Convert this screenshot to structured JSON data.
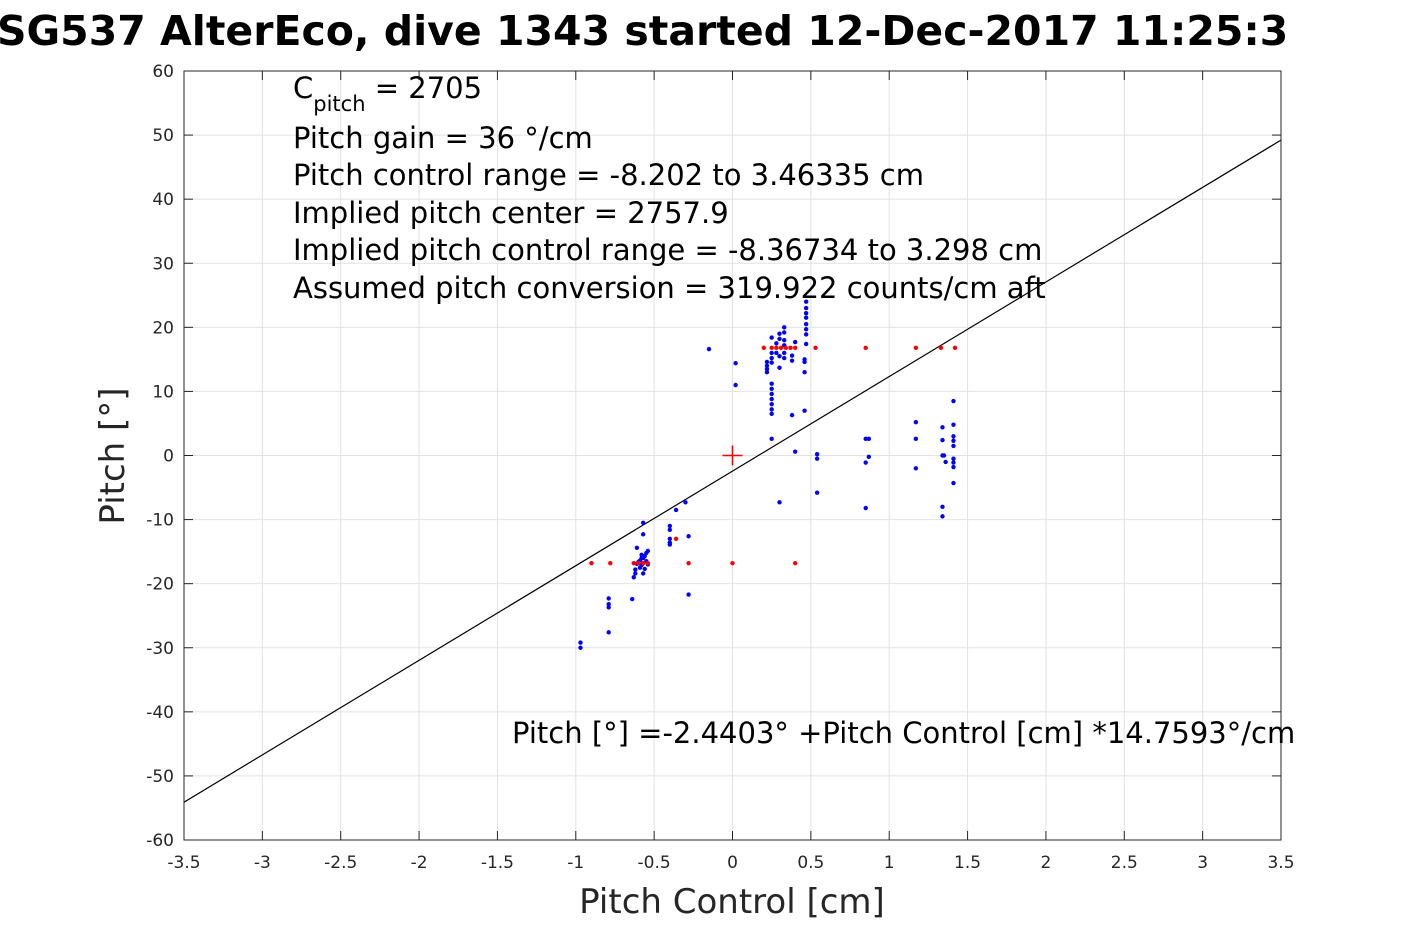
{
  "chart_data": {
    "type": "scatter",
    "title": "SG537 AlterEco, dive 1343 started 12-Dec-2017 11:25:3",
    "xlabel": "Pitch Control [cm]",
    "ylabel": "Pitch [°]",
    "xlim": [
      -3.5,
      3.5
    ],
    "ylim": [
      -60,
      60
    ],
    "xticks": [
      -3.5,
      -3,
      -2.5,
      -2,
      -1.5,
      -1,
      -0.5,
      0,
      0.5,
      1,
      1.5,
      2,
      2.5,
      3,
      3.5
    ],
    "yticks": [
      -60,
      -50,
      -40,
      -30,
      -20,
      -10,
      0,
      10,
      20,
      30,
      40,
      50,
      60
    ],
    "xtick_labels": [
      "-3.5",
      "-3",
      "-2.5",
      "-2",
      "-1.5",
      "-1",
      "-0.5",
      "0",
      "0.5",
      "1",
      "1.5",
      "2",
      "2.5",
      "3",
      "3.5"
    ],
    "ytick_labels": [
      "-60",
      "-50",
      "-40",
      "-30",
      "-20",
      "-10",
      "0",
      "10",
      "20",
      "30",
      "40",
      "50",
      "60"
    ],
    "grid": true,
    "colors": {
      "observed": "#0000ff",
      "flagged": "#ff0000",
      "fit": "#000000",
      "center": "#ff0000"
    },
    "fit_line": {
      "intercept": -2.4403,
      "slope": 14.7593
    },
    "center_marker": {
      "x": 0,
      "y": 0
    },
    "annotations": {
      "c_pitch_prefix": "C",
      "c_pitch_sub": "pitch",
      "c_pitch_value": " = 2705",
      "lines": [
        "Pitch gain = 36 °/cm",
        "Pitch control range = -8.202 to 3.46335 cm",
        "Implied pitch center = 2757.9",
        "Implied pitch control range = -8.36734 to 3.298 cm",
        "Assumed pitch conversion = 319.922 counts/cm aft"
      ],
      "fit_equation": "Pitch [°] =-2.4403° +Pitch Control [cm] *14.7593°/cm"
    },
    "series": [
      {
        "role": "observed",
        "color": "#0000ff",
        "points": [
          [
            -0.97,
            -29.2
          ],
          [
            -0.97,
            -30.0
          ],
          [
            -0.79,
            -22.3
          ],
          [
            -0.79,
            -23.2
          ],
          [
            -0.79,
            -23.7
          ],
          [
            -0.79,
            -27.6
          ],
          [
            -0.64,
            -22.4
          ],
          [
            -0.63,
            -19.0
          ],
          [
            -0.62,
            -18.4
          ],
          [
            -0.62,
            -17.8
          ],
          [
            -0.61,
            -16.9
          ],
          [
            -0.61,
            -14.4
          ],
          [
            -0.6,
            -16.6
          ],
          [
            -0.59,
            -17.5
          ],
          [
            -0.59,
            -16.4
          ],
          [
            -0.58,
            -16.0
          ],
          [
            -0.58,
            -15.5
          ],
          [
            -0.58,
            -17.1
          ],
          [
            -0.57,
            -18.4
          ],
          [
            -0.57,
            -16.0
          ],
          [
            -0.57,
            -12.3
          ],
          [
            -0.57,
            -10.5
          ],
          [
            -0.56,
            -15.7
          ],
          [
            -0.56,
            -17.7
          ],
          [
            -0.55,
            -15.2
          ],
          [
            -0.55,
            -16.5
          ],
          [
            -0.54,
            -14.9
          ],
          [
            -0.54,
            -17.0
          ],
          [
            -0.4,
            -11.0
          ],
          [
            -0.4,
            -11.6
          ],
          [
            -0.4,
            -13.0
          ],
          [
            -0.4,
            -13.6
          ],
          [
            -0.4,
            -13.9
          ],
          [
            -0.36,
            -8.5
          ],
          [
            -0.3,
            -7.3
          ],
          [
            -0.28,
            -12.6
          ],
          [
            -0.28,
            -21.7
          ],
          [
            -0.15,
            16.6
          ],
          [
            0.02,
            14.4
          ],
          [
            0.02,
            11.0
          ],
          [
            0.22,
            14.6
          ],
          [
            0.22,
            14.0
          ],
          [
            0.22,
            13.5
          ],
          [
            0.22,
            13.0
          ],
          [
            0.25,
            18.4
          ],
          [
            0.25,
            16.0
          ],
          [
            0.25,
            15.2
          ],
          [
            0.25,
            14.5
          ],
          [
            0.25,
            11.2
          ],
          [
            0.25,
            10.4
          ],
          [
            0.25,
            9.6
          ],
          [
            0.25,
            8.8
          ],
          [
            0.25,
            8.0
          ],
          [
            0.25,
            7.2
          ],
          [
            0.25,
            6.5
          ],
          [
            0.25,
            2.6
          ],
          [
            0.28,
            17.5
          ],
          [
            0.28,
            16.0
          ],
          [
            0.3,
            19.0
          ],
          [
            0.3,
            18.2
          ],
          [
            0.3,
            15.5
          ],
          [
            0.3,
            13.7
          ],
          [
            0.3,
            -7.3
          ],
          [
            0.33,
            20.0
          ],
          [
            0.33,
            19.2
          ],
          [
            0.33,
            18.0
          ],
          [
            0.33,
            17.2
          ],
          [
            0.33,
            16.0
          ],
          [
            0.33,
            15.2
          ],
          [
            0.38,
            15.6
          ],
          [
            0.38,
            14.8
          ],
          [
            0.38,
            6.3
          ],
          [
            0.4,
            17.7
          ],
          [
            0.4,
            0.6
          ],
          [
            0.46,
            15.0
          ],
          [
            0.46,
            14.6
          ],
          [
            0.46,
            13.0
          ],
          [
            0.46,
            7.0
          ],
          [
            0.47,
            24.0
          ],
          [
            0.47,
            23.0
          ],
          [
            0.47,
            22.2
          ],
          [
            0.47,
            21.5
          ],
          [
            0.47,
            20.5
          ],
          [
            0.47,
            19.7
          ],
          [
            0.47,
            18.9
          ],
          [
            0.47,
            17.4
          ],
          [
            0.54,
            0.2
          ],
          [
            0.54,
            -0.5
          ],
          [
            0.54,
            -5.8
          ],
          [
            0.85,
            2.6
          ],
          [
            0.85,
            -1.1
          ],
          [
            0.85,
            -8.2
          ],
          [
            0.87,
            2.6
          ],
          [
            0.87,
            -0.2
          ],
          [
            1.17,
            5.2
          ],
          [
            1.17,
            2.6
          ],
          [
            1.17,
            -2.0
          ],
          [
            1.34,
            4.4
          ],
          [
            1.34,
            2.4
          ],
          [
            1.34,
            0.0
          ],
          [
            1.34,
            -8.0
          ],
          [
            1.34,
            -9.5
          ],
          [
            1.35,
            0.0
          ],
          [
            1.36,
            -1.0
          ],
          [
            1.41,
            8.5
          ],
          [
            1.41,
            4.8
          ],
          [
            1.41,
            3.0
          ],
          [
            1.41,
            2.3
          ],
          [
            1.41,
            1.5
          ],
          [
            1.41,
            -0.5
          ],
          [
            1.41,
            -1.1
          ],
          [
            1.41,
            -1.8
          ],
          [
            1.41,
            -4.3
          ]
        ]
      },
      {
        "role": "flagged",
        "color": "#ff0000",
        "points": [
          [
            -0.9,
            -16.8
          ],
          [
            -0.78,
            -16.8
          ],
          [
            -0.63,
            -16.8
          ],
          [
            -0.6,
            -16.8
          ],
          [
            -0.57,
            -16.8
          ],
          [
            -0.54,
            -16.8
          ],
          [
            -0.36,
            -13.0
          ],
          [
            -0.28,
            -16.8
          ],
          [
            0.0,
            -16.8
          ],
          [
            0.4,
            -16.8
          ],
          [
            0.2,
            16.8
          ],
          [
            0.25,
            16.8
          ],
          [
            0.28,
            16.8
          ],
          [
            0.31,
            16.8
          ],
          [
            0.34,
            16.8
          ],
          [
            0.37,
            16.8
          ],
          [
            0.4,
            16.8
          ],
          [
            0.53,
            16.8
          ],
          [
            0.85,
            16.8
          ],
          [
            1.17,
            16.8
          ],
          [
            1.33,
            16.8
          ],
          [
            1.42,
            16.8
          ]
        ]
      }
    ]
  }
}
